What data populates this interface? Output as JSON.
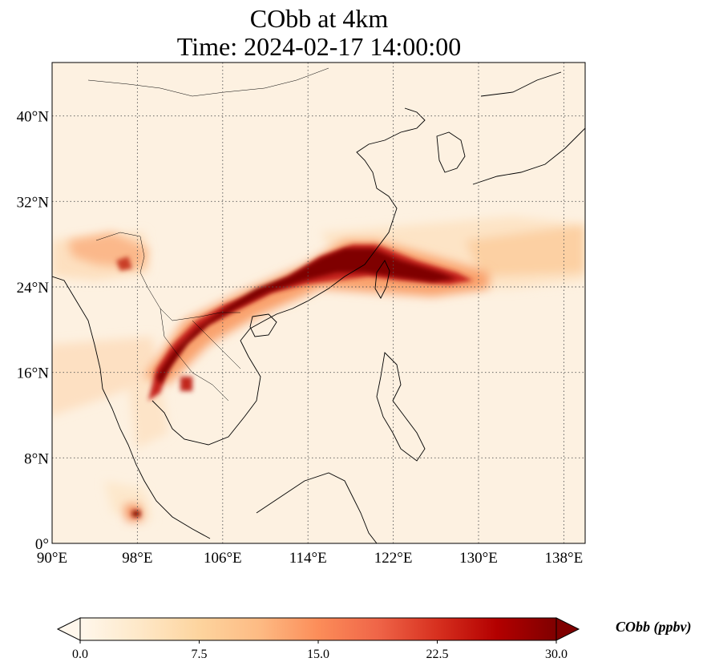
{
  "title": {
    "line1": "CObb at 4km",
    "line2": "Time: 2024-02-17 14:00:00"
  },
  "map": {
    "projection": "PlateCarree",
    "extent": {
      "lon_min": 90,
      "lon_max": 140,
      "lat_min": 0,
      "lat_max": 45
    },
    "gridlines": "dotted",
    "lon_ticks": [
      {
        "value": 90,
        "label": "90°E"
      },
      {
        "value": 98,
        "label": "98°E"
      },
      {
        "value": 106,
        "label": "106°E"
      },
      {
        "value": 114,
        "label": "114°E"
      },
      {
        "value": 122,
        "label": "122°E"
      },
      {
        "value": 130,
        "label": "130°E"
      },
      {
        "value": 138,
        "label": "138°E"
      }
    ],
    "lat_ticks": [
      {
        "value": 0,
        "label": "0°"
      },
      {
        "value": 8,
        "label": "8°N"
      },
      {
        "value": 16,
        "label": "16°N"
      },
      {
        "value": 24,
        "label": "24°N"
      },
      {
        "value": 32,
        "label": "32°N"
      },
      {
        "value": 40,
        "label": "40°N"
      }
    ]
  },
  "colorbar": {
    "label": "CObb (ppbv)",
    "min": 0.0,
    "max": 30.0,
    "extend": "both",
    "colormap": "OrRd",
    "colors": [
      "#fff7ec",
      "#fee8c8",
      "#fdd49e",
      "#fdbb84",
      "#fc8d59",
      "#ef6548",
      "#d7301f",
      "#b30000",
      "#7f0000"
    ],
    "ticks": [
      {
        "value": 0.0,
        "label": "0.0"
      },
      {
        "value": 7.5,
        "label": "7.5"
      },
      {
        "value": 15.0,
        "label": "15.0"
      },
      {
        "value": 22.5,
        "label": "22.5"
      },
      {
        "value": 30.0,
        "label": "30.0"
      }
    ]
  }
}
